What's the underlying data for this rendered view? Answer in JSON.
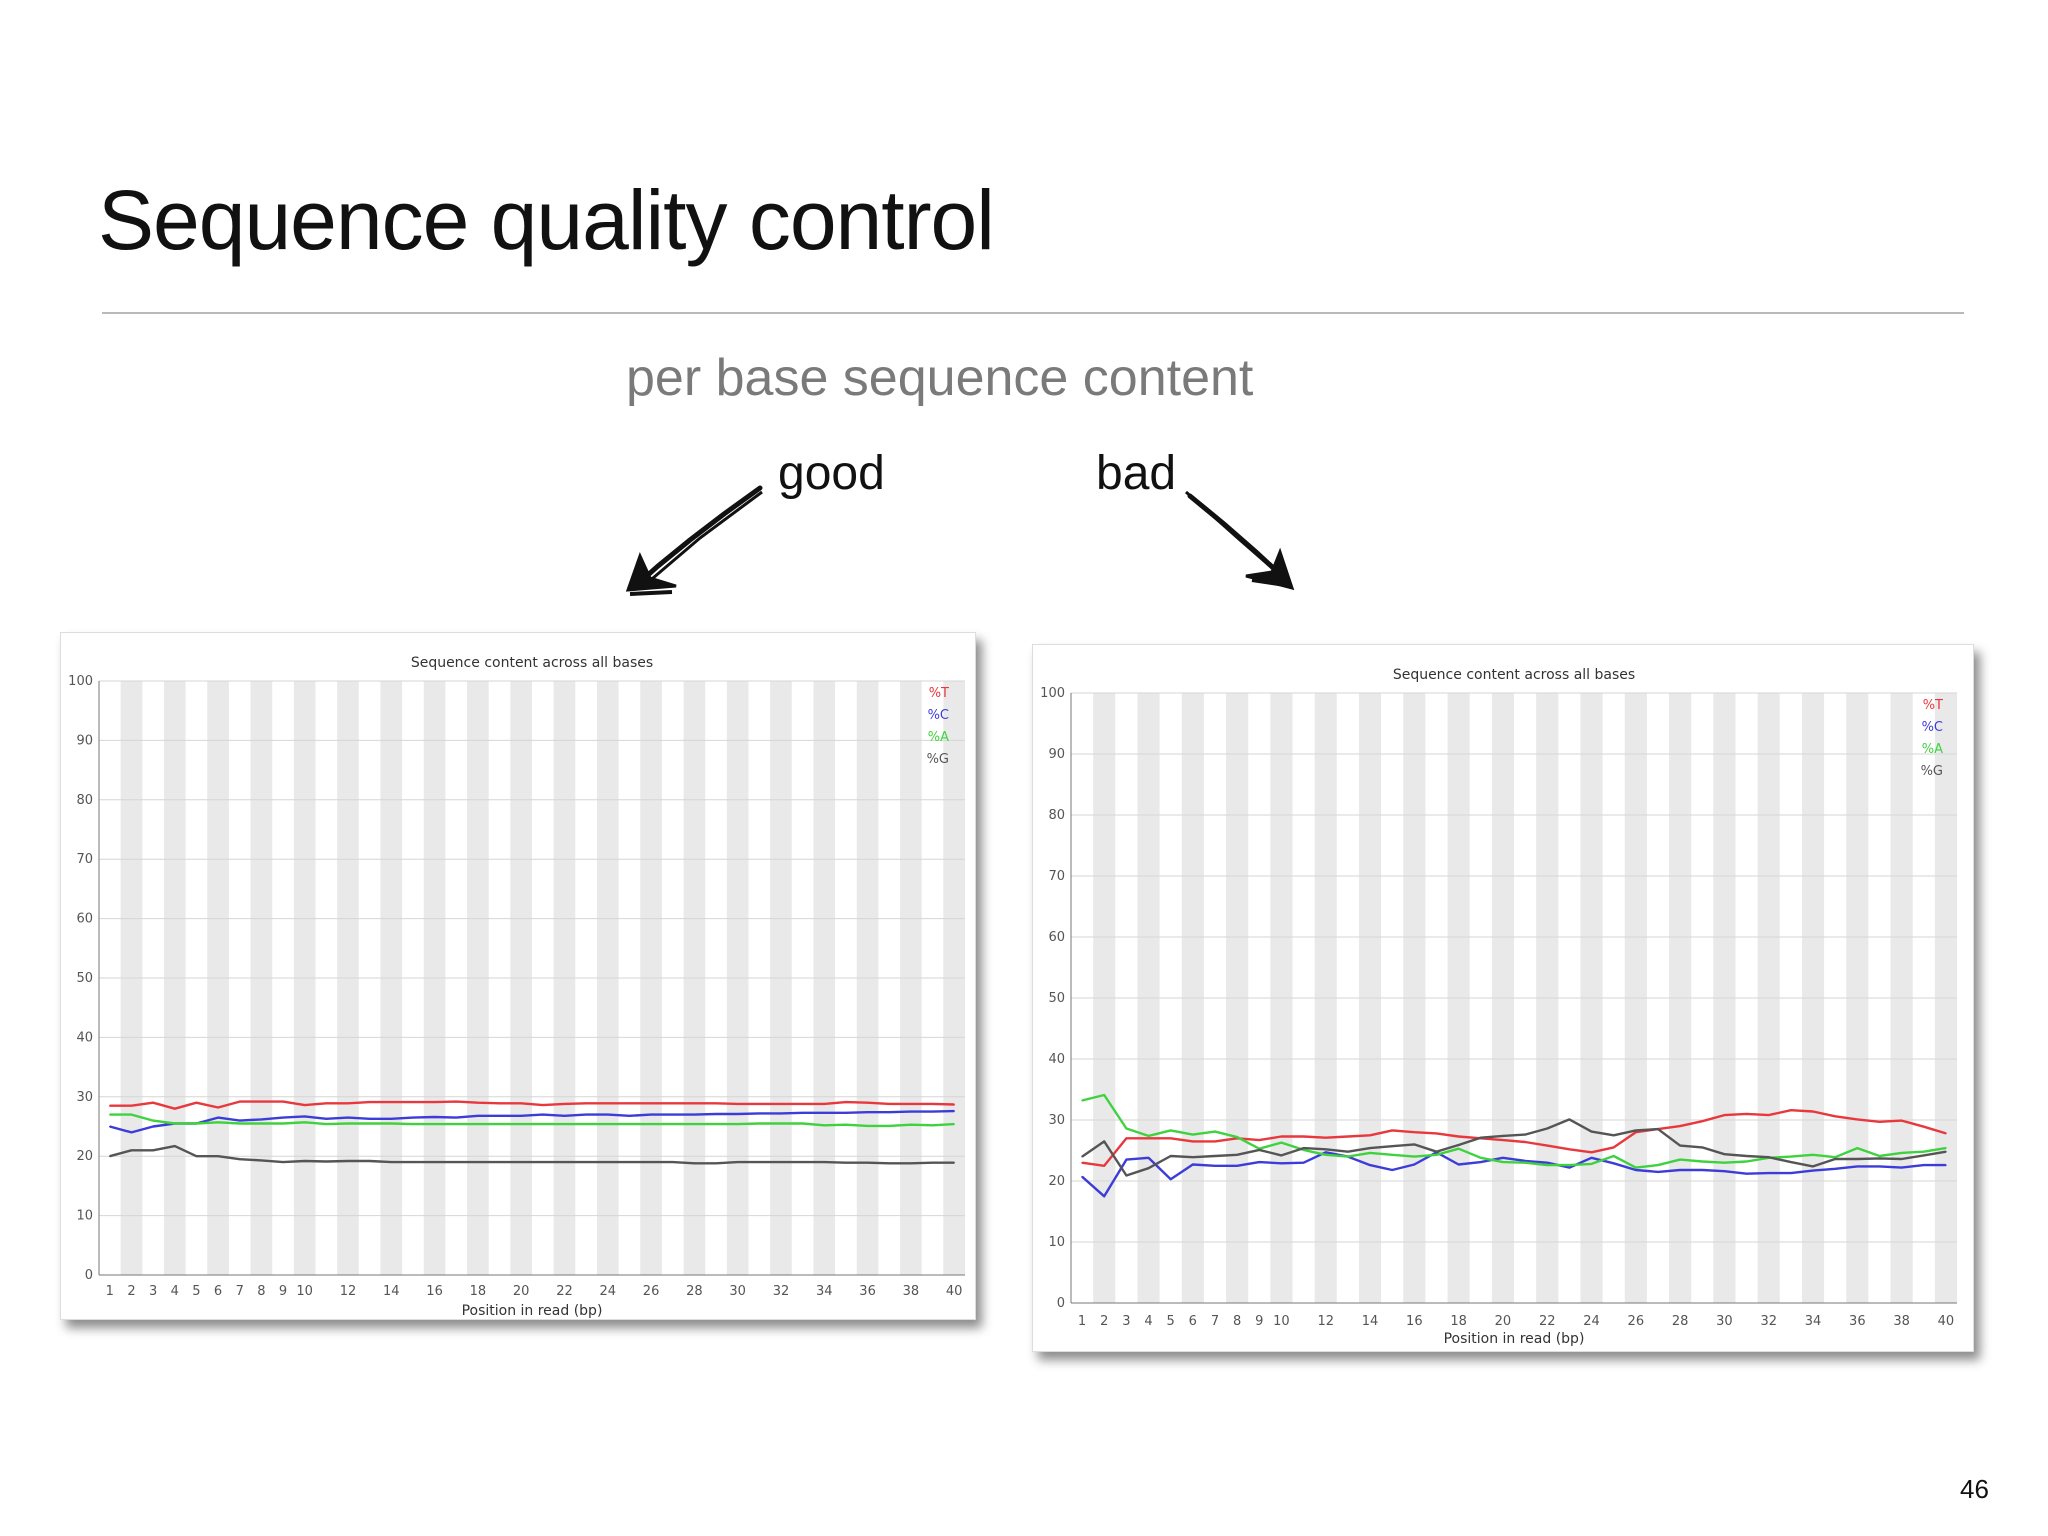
{
  "slide": {
    "title": "Sequence quality control",
    "subtitle": "per base sequence content",
    "good_label": "good",
    "bad_label": "bad",
    "page_number": "46"
  },
  "colors": {
    "T": "#e8383d",
    "C": "#3c3cd8",
    "A": "#3fd23f",
    "G": "#555555"
  },
  "chart_data": [
    {
      "type": "line",
      "title": "Sequence content across all bases",
      "xlabel": "Position in read (bp)",
      "ylabel": "",
      "ylim": [
        0,
        100
      ],
      "yticks": [
        0,
        10,
        20,
        30,
        40,
        50,
        60,
        70,
        80,
        90,
        100
      ],
      "x": [
        1,
        2,
        3,
        4,
        5,
        6,
        7,
        8,
        9,
        10,
        11,
        12,
        13,
        14,
        15,
        16,
        17,
        18,
        19,
        20,
        21,
        22,
        23,
        24,
        25,
        26,
        27,
        28,
        29,
        30,
        31,
        32,
        33,
        34,
        35,
        36,
        37,
        38,
        39,
        40
      ],
      "xtick_labels": [
        "1",
        "2",
        "3",
        "4",
        "5",
        "6",
        "7",
        "8",
        "9",
        "10",
        "12",
        "14",
        "16",
        "18",
        "20",
        "22",
        "24",
        "26",
        "28",
        "30",
        "32",
        "34",
        "36",
        "38",
        "40"
      ],
      "xtick_positions": [
        1,
        2,
        3,
        4,
        5,
        6,
        7,
        8,
        9,
        10,
        12,
        14,
        16,
        18,
        20,
        22,
        24,
        26,
        28,
        30,
        32,
        34,
        36,
        38,
        40
      ],
      "grid": true,
      "legend_position": "top-right",
      "series": [
        {
          "name": "%T",
          "values": [
            28.5,
            28.5,
            29,
            28,
            29,
            28.2,
            29.2,
            29.2,
            29.2,
            28.6,
            28.9,
            28.9,
            29.1,
            29.1,
            29.1,
            29.1,
            29.2,
            29,
            28.9,
            28.9,
            28.6,
            28.8,
            28.9,
            28.9,
            28.9,
            28.9,
            28.9,
            28.9,
            28.9,
            28.8,
            28.8,
            28.8,
            28.8,
            28.8,
            29.1,
            29,
            28.8,
            28.8,
            28.8,
            28.7
          ]
        },
        {
          "name": "%C",
          "values": [
            25,
            24,
            25,
            25.5,
            25.5,
            26.5,
            26,
            26.2,
            26.5,
            26.7,
            26.3,
            26.5,
            26.3,
            26.3,
            26.5,
            26.6,
            26.5,
            26.8,
            26.8,
            26.8,
            27,
            26.8,
            27,
            27,
            26.8,
            27,
            27,
            27,
            27.1,
            27.1,
            27.2,
            27.2,
            27.3,
            27.3,
            27.3,
            27.4,
            27.4,
            27.5,
            27.5,
            27.6
          ]
        },
        {
          "name": "%A",
          "values": [
            27,
            27,
            26,
            25.5,
            25.5,
            25.7,
            25.5,
            25.5,
            25.5,
            25.7,
            25.4,
            25.5,
            25.5,
            25.5,
            25.4,
            25.4,
            25.4,
            25.4,
            25.4,
            25.4,
            25.4,
            25.4,
            25.4,
            25.4,
            25.4,
            25.4,
            25.4,
            25.4,
            25.4,
            25.4,
            25.5,
            25.5,
            25.5,
            25.2,
            25.3,
            25.1,
            25.1,
            25.3,
            25.2,
            25.4
          ]
        },
        {
          "name": "%G",
          "values": [
            20,
            21,
            21,
            21.7,
            20,
            20,
            19.5,
            19.3,
            19,
            19.2,
            19.1,
            19.2,
            19.2,
            19,
            19,
            19,
            19,
            19,
            19,
            19,
            19,
            19,
            19,
            19,
            19,
            19,
            19,
            18.8,
            18.8,
            19,
            19,
            19,
            19,
            19,
            18.9,
            18.9,
            18.8,
            18.8,
            18.9,
            18.9
          ]
        }
      ]
    },
    {
      "type": "line",
      "title": "Sequence content across all bases",
      "xlabel": "Position in read (bp)",
      "ylabel": "",
      "ylim": [
        0,
        100
      ],
      "yticks": [
        0,
        10,
        20,
        30,
        40,
        50,
        60,
        70,
        80,
        90,
        100
      ],
      "x": [
        1,
        2,
        3,
        4,
        5,
        6,
        7,
        8,
        9,
        10,
        11,
        12,
        13,
        14,
        15,
        16,
        17,
        18,
        19,
        20,
        21,
        22,
        23,
        24,
        25,
        26,
        27,
        28,
        29,
        30,
        31,
        32,
        33,
        34,
        35,
        36,
        37,
        38,
        39,
        40
      ],
      "xtick_labels": [
        "1",
        "2",
        "3",
        "4",
        "5",
        "6",
        "7",
        "8",
        "9",
        "10",
        "12",
        "14",
        "16",
        "18",
        "20",
        "22",
        "24",
        "26",
        "28",
        "30",
        "32",
        "34",
        "36",
        "38",
        "40"
      ],
      "xtick_positions": [
        1,
        2,
        3,
        4,
        5,
        6,
        7,
        8,
        9,
        10,
        12,
        14,
        16,
        18,
        20,
        22,
        24,
        26,
        28,
        30,
        32,
        34,
        36,
        38,
        40
      ],
      "grid": true,
      "legend_position": "top-right",
      "series": [
        {
          "name": "%T",
          "values": [
            23,
            22.5,
            27,
            27,
            27,
            26.5,
            26.5,
            27,
            26.7,
            27.3,
            27.3,
            27.1,
            27.3,
            27.5,
            28.3,
            28,
            27.8,
            27.3,
            27,
            26.7,
            26.4,
            25.8,
            25.2,
            24.7,
            25.5,
            28,
            28.5,
            29,
            29.8,
            30.8,
            31,
            30.8,
            31.6,
            31.4,
            30.6,
            30.1,
            29.7,
            29.9,
            28.9,
            27.8
          ]
        },
        {
          "name": "%C",
          "values": [
            20.7,
            17.5,
            23.5,
            23.8,
            20.3,
            22.7,
            22.5,
            22.5,
            23.1,
            22.9,
            23,
            24.7,
            24,
            22.6,
            21.8,
            22.7,
            24.7,
            22.7,
            23.1,
            23.8,
            23.3,
            23,
            22.2,
            23.8,
            22.9,
            21.8,
            21.5,
            21.8,
            21.8,
            21.6,
            21.2,
            21.3,
            21.3,
            21.7,
            22,
            22.4,
            22.4,
            22.2,
            22.6,
            22.6
          ]
        },
        {
          "name": "%A",
          "values": [
            33.2,
            34.1,
            28.6,
            27.4,
            28.3,
            27.6,
            28.1,
            27.2,
            25.3,
            26.3,
            25.1,
            24.3,
            24,
            24.6,
            24.3,
            24,
            24.3,
            25.3,
            23.8,
            23.1,
            23,
            22.6,
            22.6,
            22.8,
            24.1,
            22.2,
            22.6,
            23.5,
            23.2,
            23,
            23.2,
            23.8,
            24,
            24.3,
            23.9,
            25.4,
            24.1,
            24.6,
            24.8,
            25.4
          ]
        },
        {
          "name": "%G",
          "values": [
            24,
            26.5,
            20.9,
            22.1,
            24.1,
            23.9,
            24.1,
            24.3,
            25.1,
            24.2,
            25.4,
            25.2,
            24.8,
            25.4,
            25.7,
            26,
            24.8,
            25.9,
            27.1,
            27.4,
            27.6,
            28.6,
            30.1,
            28.1,
            27.5,
            28.3,
            28.5,
            25.8,
            25.5,
            24.4,
            24.1,
            23.9,
            23.1,
            22.4,
            23.6,
            23.6,
            23.7,
            23.6,
            24.2,
            24.8
          ]
        }
      ]
    }
  ]
}
